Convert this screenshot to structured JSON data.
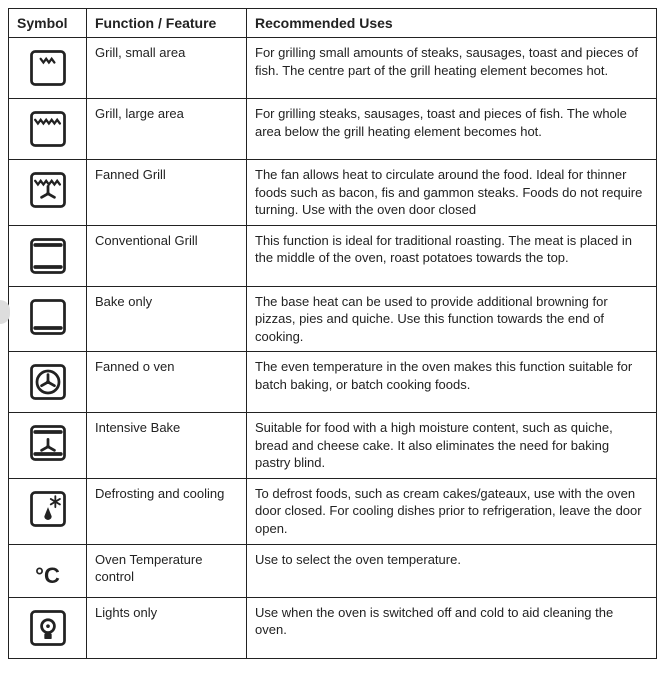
{
  "headers": {
    "symbol": "Symbol",
    "function": "Function / Feature",
    "uses": "Recommended Uses"
  },
  "rows": [
    {
      "icon": "grill-small",
      "function": "Grill, small area",
      "uses": "For grilling small amounts of steaks, sausages, toast and pieces of fish. The centre part of the grill heating element becomes hot."
    },
    {
      "icon": "grill-large",
      "function": "Grill, large area",
      "uses": "For grilling steaks, sausages, toast and pieces of fish. The whole area below the grill heating element becomes hot."
    },
    {
      "icon": "fanned-grill",
      "function": "Fanned Grill",
      "uses": "The fan allows heat to circulate around the food. Ideal for thinner foods such as bacon, fis  and gammon steaks. Foods do not require turning. Use with the oven door closed"
    },
    {
      "icon": "conventional-grill",
      "function": "Conventional Grill",
      "uses": "This function is ideal for traditional roasting. The meat is placed in the middle of the oven, roast potatoes towards the top."
    },
    {
      "icon": "bake-only",
      "function": "Bake only",
      "uses": "The base heat can be used to provide additional browning for pizzas, pies and quiche. Use this function towards the end of cooking."
    },
    {
      "icon": "fanned-oven",
      "function": "Fanned o ven",
      "uses": "The even temperature in the oven makes this function suitable for batch baking, or batch cooking foods."
    },
    {
      "icon": "intensive-bake",
      "function": "Intensive Bake",
      "uses": "Suitable for food with a high moisture content, such as quiche, bread and cheese cake. It also eliminates the need for baking pastry blind."
    },
    {
      "icon": "defrost",
      "function": "Defrosting and cooling",
      "uses": "To defrost foods, such as cream cakes/gateaux, use with the oven door closed. For cooling dishes prior to refrigeration, leave the door open."
    },
    {
      "icon": "temp-control",
      "function": "Oven Temperature control",
      "uses": "Use to select the oven temperature."
    },
    {
      "icon": "lights-only",
      "function": "Lights only",
      "uses": "Use when the oven is switched off and cold to aid cleaning the oven."
    }
  ],
  "degc_label": "°C"
}
